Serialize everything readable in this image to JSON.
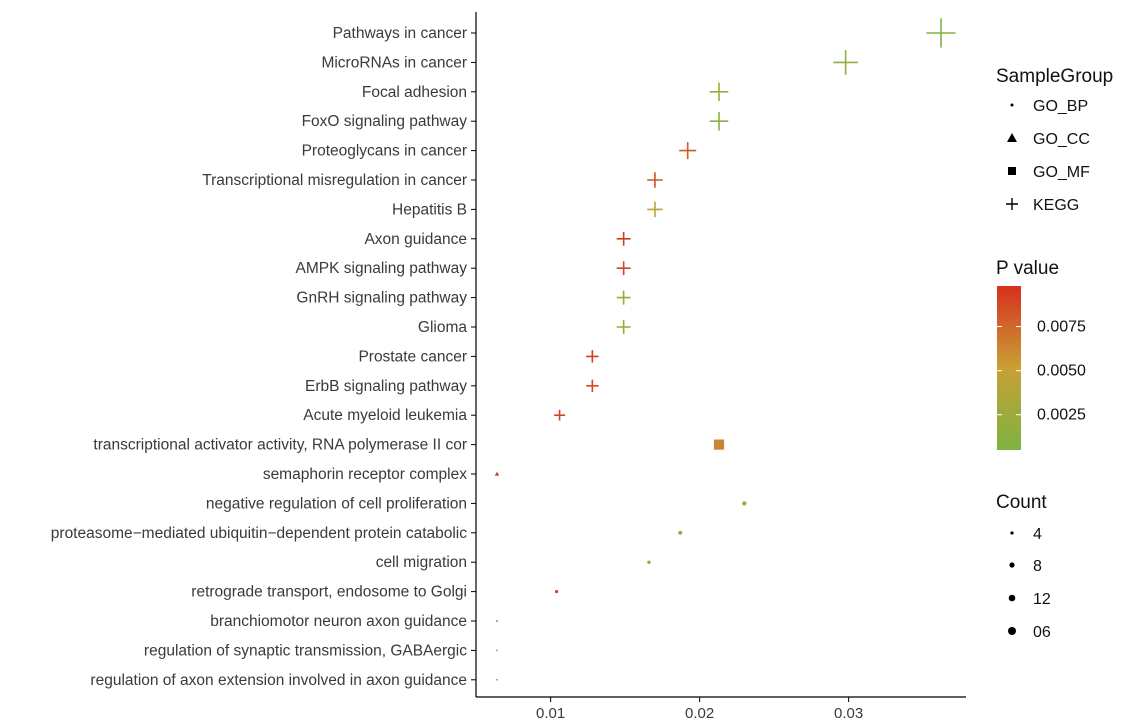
{
  "chart_data": {
    "type": "scatter",
    "xlabel": "",
    "ylabel": "",
    "xlim": [
      0.006,
      0.0372
    ],
    "xticks": [
      0.01,
      0.02,
      0.03
    ],
    "x_tick_labels": [
      "0.01",
      "0.02",
      "0.03"
    ],
    "grid": false,
    "legend_position": "right",
    "points": [
      {
        "term": "Pathways in cancer",
        "x": 0.0362,
        "group": "KEGG",
        "pvalue": 0.001,
        "count": 36
      },
      {
        "term": "MicroRNAs in cancer",
        "x": 0.0298,
        "group": "KEGG",
        "pvalue": 0.0015,
        "count": 30
      },
      {
        "term": "Focal adhesion",
        "x": 0.0213,
        "group": "KEGG",
        "pvalue": 0.003,
        "count": 22
      },
      {
        "term": "FoxO signaling pathway",
        "x": 0.0213,
        "group": "KEGG",
        "pvalue": 0.0012,
        "count": 22
      },
      {
        "term": "Proteoglycans in cancer",
        "x": 0.0192,
        "group": "KEGG",
        "pvalue": 0.008,
        "count": 20
      },
      {
        "term": "Transcriptional misregulation in cancer",
        "x": 0.017,
        "group": "KEGG",
        "pvalue": 0.0085,
        "count": 18
      },
      {
        "term": "Hepatitis B",
        "x": 0.017,
        "group": "KEGG",
        "pvalue": 0.0045,
        "count": 18
      },
      {
        "term": "Axon guidance",
        "x": 0.0149,
        "group": "KEGG",
        "pvalue": 0.0093,
        "count": 16
      },
      {
        "term": "AMPK signaling pathway",
        "x": 0.0149,
        "group": "KEGG",
        "pvalue": 0.009,
        "count": 16
      },
      {
        "term": "GnRH signaling pathway",
        "x": 0.0149,
        "group": "KEGG",
        "pvalue": 0.0022,
        "count": 16
      },
      {
        "term": "Glioma",
        "x": 0.0149,
        "group": "KEGG",
        "pvalue": 0.0015,
        "count": 16
      },
      {
        "term": "Prostate cancer",
        "x": 0.0128,
        "group": "KEGG",
        "pvalue": 0.0092,
        "count": 14
      },
      {
        "term": "ErbB signaling pathway",
        "x": 0.0128,
        "group": "KEGG",
        "pvalue": 0.0088,
        "count": 14
      },
      {
        "term": "Acute myeloid leukemia",
        "x": 0.0106,
        "group": "KEGG",
        "pvalue": 0.009,
        "count": 12
      },
      {
        "term": "transcriptional activator activity, RNA polymerase II cor",
        "x": 0.0213,
        "group": "GO_MF",
        "pvalue": 0.0063,
        "count": 22
      },
      {
        "term": "semaphorin receptor complex",
        "x": 0.0064,
        "group": "GO_CC",
        "pvalue": 0.0095,
        "count": 6
      },
      {
        "term": "negative regulation of cell proliferation",
        "x": 0.023,
        "group": "GO_BP",
        "pvalue": 0.003,
        "count": 8
      },
      {
        "term": "proteasome−mediated ubiquitin−dependent protein catabolic",
        "x": 0.0187,
        "group": "GO_BP",
        "pvalue": 0.0012,
        "count": 7
      },
      {
        "term": "cell migration",
        "x": 0.0166,
        "group": "GO_BP",
        "pvalue": 0.003,
        "count": 6
      },
      {
        "term": "retrograde transport, endosome to Golgi",
        "x": 0.0104,
        "group": "GO_BP",
        "pvalue": 0.0095,
        "count": 5
      },
      {
        "term": "branchiomotor neuron axon guidance",
        "x": 0.0064,
        "group": "GO_BP",
        "pvalue": 0.009,
        "count": 2
      },
      {
        "term": "regulation of synaptic transmission, GABAergic",
        "x": 0.0064,
        "group": "GO_BP",
        "pvalue": 0.004,
        "count": 2
      },
      {
        "term": "regulation of axon extension involved in axon guidance",
        "x": 0.0064,
        "group": "GO_BP",
        "pvalue": 0.001,
        "count": 2
      }
    ],
    "legend_shape": {
      "title": "SampleGroup",
      "entries": [
        "GO_BP",
        "GO_CC",
        "GO_MF",
        "KEGG"
      ]
    },
    "legend_color": {
      "title": "P value",
      "breaks": [
        0.0025,
        0.005,
        0.0075
      ],
      "break_labels": [
        "0.0025",
        "0.0050",
        "0.0075"
      ],
      "range": [
        0.0005,
        0.0098
      ],
      "low_color": "#7cb342",
      "mid_color": "#c8a035",
      "high_color": "#d7301f"
    },
    "legend_size": {
      "title": "Count",
      "entries": [
        "4",
        "8",
        "12",
        "06"
      ]
    }
  }
}
